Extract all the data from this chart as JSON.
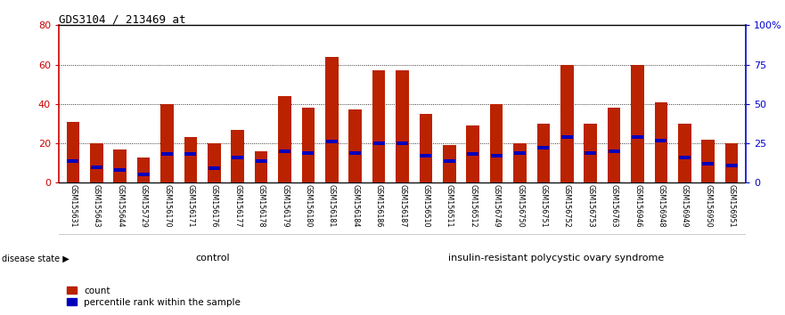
{
  "title": "GDS3104 / 213469_at",
  "samples": [
    "GSM155631",
    "GSM155643",
    "GSM155644",
    "GSM155729",
    "GSM156170",
    "GSM156171",
    "GSM156176",
    "GSM156177",
    "GSM156178",
    "GSM156179",
    "GSM156180",
    "GSM156181",
    "GSM156184",
    "GSM156186",
    "GSM156187",
    "GSM156510",
    "GSM156511",
    "GSM156512",
    "GSM156749",
    "GSM156750",
    "GSM156751",
    "GSM156752",
    "GSM156753",
    "GSM156763",
    "GSM156946",
    "GSM156948",
    "GSM156949",
    "GSM156950",
    "GSM156951"
  ],
  "count_values": [
    31,
    20,
    17,
    13,
    40,
    23,
    20,
    27,
    16,
    44,
    38,
    64,
    37,
    57,
    57,
    35,
    19,
    29,
    40,
    20,
    30,
    60,
    30,
    38,
    60,
    41,
    30,
    22,
    20
  ],
  "percentile_values": [
    14,
    10,
    8,
    5,
    18,
    18,
    9,
    16,
    14,
    20,
    19,
    26,
    19,
    25,
    25,
    17,
    14,
    18,
    17,
    19,
    22,
    29,
    19,
    20,
    29,
    27,
    16,
    12,
    11
  ],
  "control_count": 13,
  "disease_count": 16,
  "bar_color": "#bb2200",
  "percentile_color": "#0000bb",
  "control_bg": "#ccffcc",
  "disease_bg": "#44dd44",
  "left_axis_color": "#cc0000",
  "right_axis_color": "#0000cc",
  "ylim_left": [
    0,
    80
  ],
  "ylim_right": [
    0,
    100
  ],
  "yticks_left": [
    0,
    20,
    40,
    60,
    80
  ],
  "yticks_right": [
    0,
    25,
    50,
    75,
    100
  ],
  "ytick_labels_left": [
    "0",
    "20",
    "40",
    "60",
    "80"
  ],
  "ytick_labels_right": [
    "0",
    "25",
    "50",
    "75",
    "100%"
  ],
  "bar_width": 0.55,
  "background_color": "#ffffff",
  "plot_bg": "#ffffff",
  "tick_area_bg": "#d0d0d0"
}
